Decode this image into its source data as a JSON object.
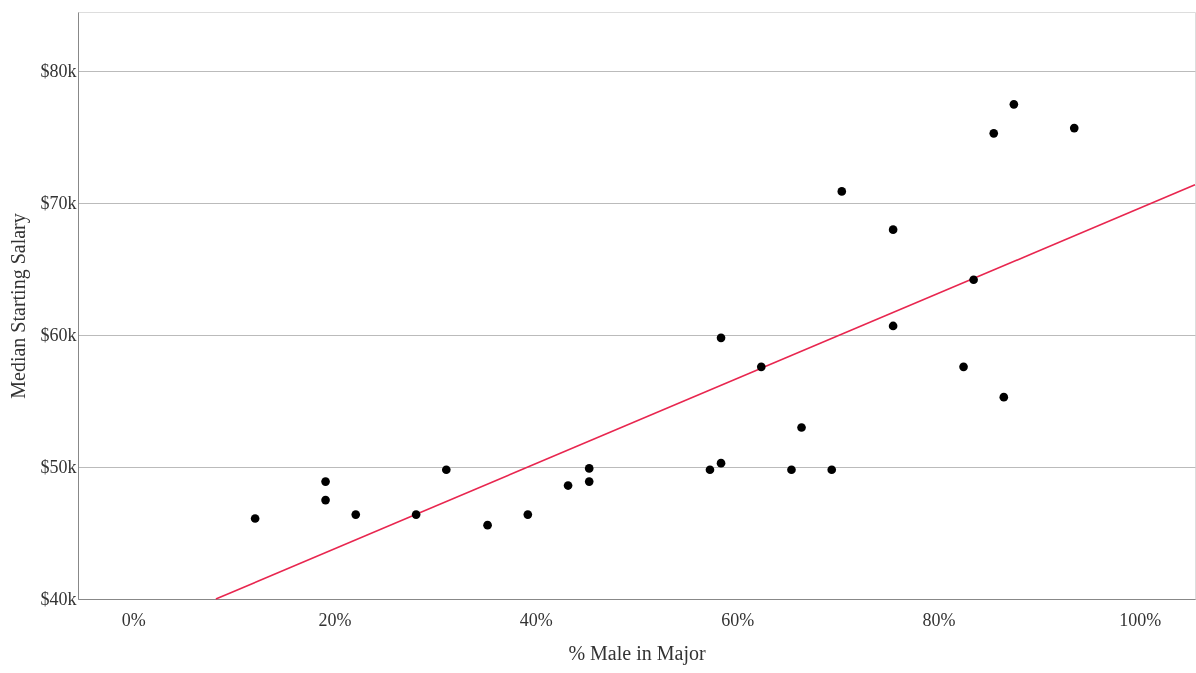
{
  "chart_data": {
    "type": "scatter",
    "xlabel": "% Male in Major",
    "ylabel": "Median Starting Salary",
    "xlim": [
      -5.5,
      105.5
    ],
    "ylim": [
      40,
      84.5
    ],
    "xticks": [
      {
        "value": 0,
        "label": "0%"
      },
      {
        "value": 20,
        "label": "20%"
      },
      {
        "value": 40,
        "label": "40%"
      },
      {
        "value": 60,
        "label": "60%"
      },
      {
        "value": 80,
        "label": "80%"
      },
      {
        "value": 100,
        "label": "100%"
      }
    ],
    "yticks": [
      {
        "value": 40,
        "label": "$40k"
      },
      {
        "value": 50,
        "label": "$50k"
      },
      {
        "value": 60,
        "label": "$60k"
      },
      {
        "value": 70,
        "label": "$70k"
      },
      {
        "value": 80,
        "label": "$80k"
      }
    ],
    "grid": "y",
    "series": [
      {
        "type": "scatter",
        "marker": "circle",
        "color": "#000000",
        "x": [
          12.1,
          19.1,
          19.1,
          22.1,
          28.1,
          31.1,
          35.2,
          39.2,
          43.2,
          45.3,
          45.3,
          57.3,
          58.4,
          58.4,
          62.4,
          65.4,
          66.4,
          69.4,
          70.4,
          75.5,
          75.5,
          82.5,
          83.5,
          85.5,
          86.5,
          87.5,
          93.5
        ],
        "values": [
          46.1,
          48.9,
          47.5,
          46.4,
          46.4,
          49.8,
          45.6,
          46.4,
          48.6,
          49.9,
          48.9,
          49.8,
          50.3,
          59.8,
          57.6,
          49.8,
          53.0,
          49.8,
          70.9,
          68.0,
          60.7,
          57.6,
          64.2,
          75.3,
          55.3,
          77.5,
          75.7
        ]
      },
      {
        "type": "line",
        "color": "#e8264f",
        "x": [
          8.2,
          105.5
        ],
        "values": [
          40,
          71.4
        ]
      }
    ]
  }
}
